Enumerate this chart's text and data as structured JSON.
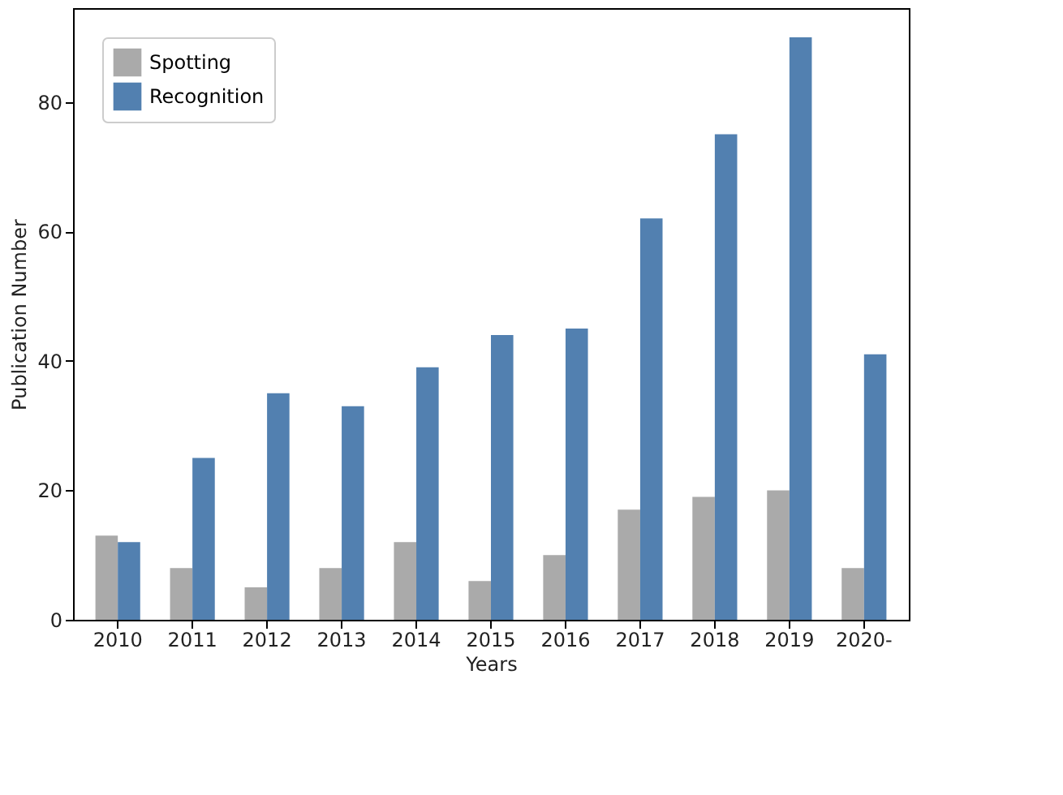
{
  "chart_data": {
    "type": "bar",
    "xlabel": "Years",
    "ylabel": "Publication Number",
    "categories": [
      "2010",
      "2011",
      "2012",
      "2013",
      "2014",
      "2015",
      "2016",
      "2017",
      "2018",
      "2019",
      "2020-"
    ],
    "series": [
      {
        "name": "Spotting",
        "color": "#aaaaaa",
        "values": [
          13,
          8,
          5,
          8,
          12,
          6,
          10,
          17,
          19,
          20,
          8
        ]
      },
      {
        "name": "Recognition",
        "color": "#5280b0",
        "values": [
          12,
          25,
          35,
          33,
          39,
          44,
          45,
          62,
          75,
          90,
          41
        ]
      }
    ],
    "ylim": [
      0,
      94.5
    ],
    "yticks": [
      0,
      20,
      40,
      60,
      80
    ],
    "grid": false,
    "legend": "top left"
  }
}
